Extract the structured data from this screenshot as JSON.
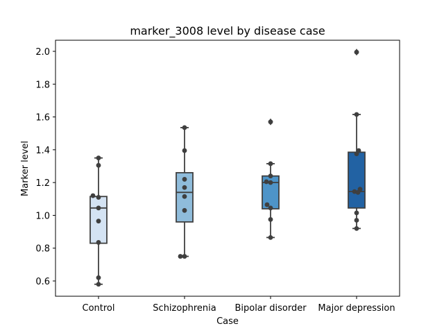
{
  "chart_data": {
    "type": "box",
    "title": "marker_3008 level by disease case",
    "xlabel": "Case",
    "ylabel": "Marker level",
    "ylim": [
      0.5,
      2.1
    ],
    "yticks": [
      "0.6",
      "0.8",
      "1.0",
      "1.2",
      "1.4",
      "1.6",
      "1.8",
      "2.0"
    ],
    "grid": false,
    "categories": [
      "Control",
      "Schizophrenia",
      "Bipolar disorder",
      "Major depression"
    ],
    "colors": [
      "#d4e3f3",
      "#8fbcdb",
      "#4e94c8",
      "#2262a3"
    ],
    "boxes": [
      {
        "name": "Control",
        "whisker_low": 0.58,
        "q1": 0.83,
        "median": 1.045,
        "q3": 1.115,
        "whisker_high": 1.35,
        "outliers": []
      },
      {
        "name": "Schizophrenia",
        "whisker_low": 0.75,
        "q1": 0.96,
        "median": 1.14,
        "q3": 1.26,
        "whisker_high": 1.535,
        "outliers": []
      },
      {
        "name": "Bipolar disorder",
        "whisker_low": 0.865,
        "q1": 1.04,
        "median": 1.2,
        "q3": 1.24,
        "whisker_high": 1.315,
        "outliers": [
          1.57
        ]
      },
      {
        "name": "Major depression",
        "whisker_low": 0.92,
        "q1": 1.045,
        "median": 1.145,
        "q3": 1.385,
        "whisker_high": 1.615,
        "outliers": [
          1.995
        ]
      }
    ],
    "points": [
      {
        "category": "Control",
        "values": [
          1.35,
          1.305,
          1.12,
          1.11,
          1.045,
          0.965,
          0.835,
          0.62,
          0.58
        ],
        "offsets": [
          0,
          0,
          -0.08,
          0,
          0,
          0,
          0,
          0,
          0
        ]
      },
      {
        "category": "Schizophrenia",
        "values": [
          1.535,
          1.395,
          1.22,
          1.17,
          1.115,
          1.03,
          0.75,
          0.75
        ],
        "offsets": [
          0,
          0,
          0,
          0,
          0,
          0,
          -0.06,
          0.0
        ]
      },
      {
        "category": "Bipolar disorder",
        "values": [
          1.57,
          1.315,
          1.24,
          1.205,
          1.2,
          1.065,
          1.045,
          0.975,
          0.865
        ],
        "offsets": [
          0,
          0,
          0,
          -0.06,
          0.0,
          -0.05,
          0,
          0,
          0
        ]
      },
      {
        "category": "Major depression",
        "values": [
          1.995,
          1.615,
          1.395,
          1.375,
          1.16,
          1.145,
          1.14,
          1.015,
          0.97,
          0.92
        ],
        "offsets": [
          0,
          0,
          0.03,
          0.0,
          0.05,
          -0.03,
          0.02,
          0,
          0,
          0
        ]
      }
    ]
  }
}
